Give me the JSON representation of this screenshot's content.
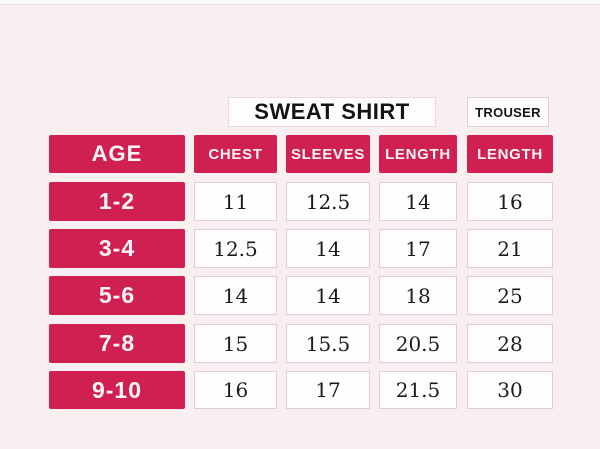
{
  "titles": {
    "sweatshirt": "SWEAT SHIRT",
    "trouser": "TROUSER"
  },
  "colors": {
    "accent_red": "#d02052",
    "background_pink": "#f9eef0",
    "cell_white": "#fffdfe",
    "cell_border": "#e0ccd1"
  },
  "chart_data": {
    "type": "table",
    "title": "SWEAT SHIRT",
    "secondary_title": "TROUSER",
    "column_groups": [
      {
        "label": "SWEAT SHIRT",
        "columns": [
          "CHEST",
          "SLEEVES",
          "LENGTH"
        ]
      },
      {
        "label": "TROUSER",
        "columns": [
          "LENGTH"
        ]
      }
    ],
    "columns": [
      "AGE",
      "CHEST",
      "SLEEVES",
      "LENGTH",
      "LENGTH"
    ],
    "rows": [
      [
        "1-2",
        "11",
        "12.5",
        "14",
        "16"
      ],
      [
        "3-4",
        "12.5",
        "14",
        "17",
        "21"
      ],
      [
        "5-6",
        "14",
        "14",
        "18",
        "25"
      ],
      [
        "7-8",
        "15",
        "15.5",
        "20.5",
        "28"
      ],
      [
        "9-10",
        "16",
        "17",
        "21.5",
        "30"
      ]
    ]
  }
}
